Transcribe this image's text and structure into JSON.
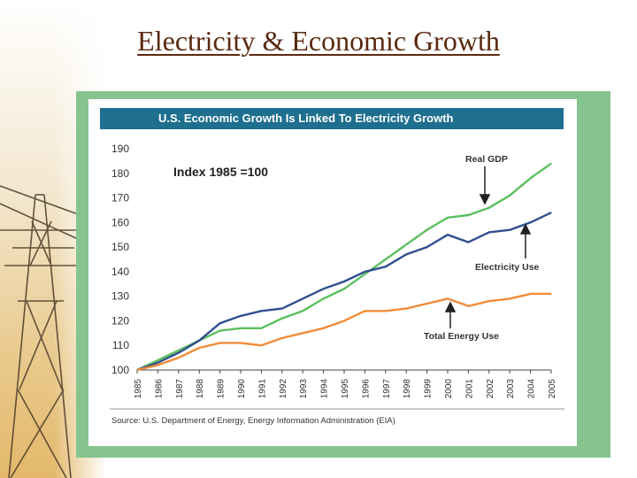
{
  "slide": {
    "title": "Electricity & Economic Growth"
  },
  "colors": {
    "frame": "#86c48f",
    "header": "#1f6f8f",
    "gdp": "#5bbf5e",
    "electricity": "#2f4f8f",
    "energy": "#f08c3a"
  },
  "chart_data": {
    "type": "line",
    "title": "U.S. Economic Growth Is Linked To Electricity Growth",
    "subtitle": "Index 1985 =100",
    "xlabel": "",
    "ylabel": "",
    "ylim": [
      100,
      190
    ],
    "yticks": [
      100,
      110,
      120,
      130,
      140,
      150,
      160,
      170,
      180,
      190
    ],
    "x": [
      "1985",
      "1986",
      "1987",
      "1988",
      "1989",
      "1990",
      "1991",
      "1992",
      "1993",
      "1994",
      "1995",
      "1996",
      "1997",
      "1998",
      "1999",
      "2000",
      "2001",
      "2002",
      "2003",
      "2004",
      "2005"
    ],
    "series": [
      {
        "name": "Real GDP",
        "values": [
          100,
          104,
          108,
          112,
          116,
          117,
          117,
          121,
          124,
          129,
          133,
          139,
          145,
          151,
          157,
          162,
          163,
          166,
          171,
          178,
          184
        ]
      },
      {
        "name": "Electricity Use",
        "values": [
          100,
          103,
          107,
          112,
          119,
          122,
          124,
          125,
          129,
          133,
          136,
          140,
          142,
          147,
          150,
          155,
          152,
          156,
          157,
          160,
          164
        ]
      },
      {
        "name": "Total Energy Use",
        "values": [
          100,
          102,
          105,
          109,
          111,
          111,
          110,
          113,
          115,
          117,
          120,
          124,
          124,
          125,
          127,
          129,
          126,
          128,
          129,
          131,
          131
        ]
      }
    ],
    "annotations": {
      "gdp": "Real GDP",
      "electricity": "Electricity Use",
      "energy": "Total Energy Use"
    },
    "source": "Source: U.S. Department of Energy, Energy Information Administration (EIA)",
    "grid": false
  }
}
